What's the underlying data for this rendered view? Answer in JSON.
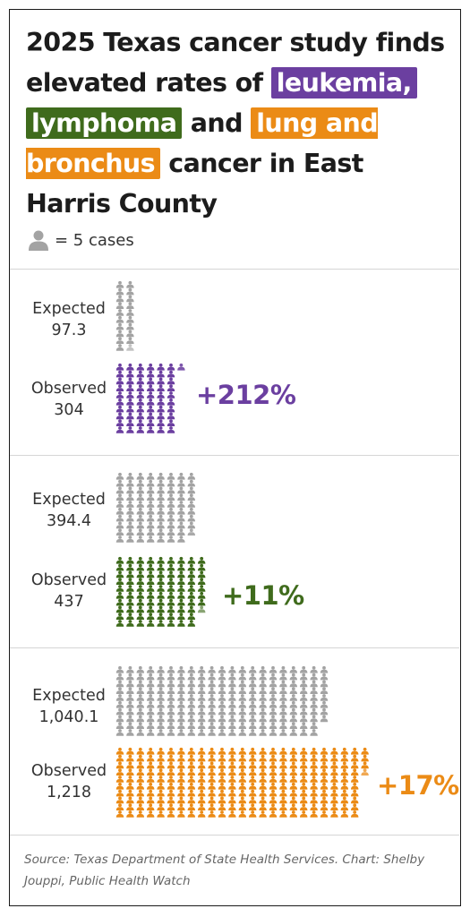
{
  "title": {
    "line1": "2025 Texas cancer study finds elevated rates of",
    "leukemia": "leukemia,",
    "lymphoma": "lymphoma",
    "and": "and",
    "lung": "lung and bronchus",
    "rest": "cancer in East Harris County"
  },
  "legend": {
    "icon": "person-icon",
    "unit_text": "= 5 cases",
    "cases_per_icon": 5
  },
  "colors": {
    "leukemia": "#6b3fa0",
    "lymphoma": "#3f6b1c",
    "lung": "#eb8b16",
    "expected": "#a3a3a3",
    "text": "#1c1c1c"
  },
  "chart_data": {
    "type": "pictograph",
    "unit": "cases",
    "cases_per_icon": 5,
    "groups": [
      {
        "name": "leukemia",
        "expected_label": "Expected",
        "expected_value_label": "97.3",
        "expected": 97.3,
        "observed_label": "Observed",
        "observed_value_label": "304",
        "observed": 304,
        "change_label": "+212%"
      },
      {
        "name": "lymphoma",
        "expected_label": "Expected",
        "expected_value_label": "394.4",
        "expected": 394.4,
        "observed_label": "Observed",
        "observed_value_label": "437",
        "observed": 437,
        "change_label": "+11%"
      },
      {
        "name": "lung and bronchus",
        "expected_label": "Expected",
        "expected_value_label": "1,040.1",
        "expected": 1040.1,
        "observed_label": "Observed",
        "observed_value_label": "1,218",
        "observed": 1218,
        "change_label": "+17%"
      }
    ]
  },
  "source": "Source: Texas Department of State Health Services. Chart: Shelby Jouppi, Public Health Watch"
}
